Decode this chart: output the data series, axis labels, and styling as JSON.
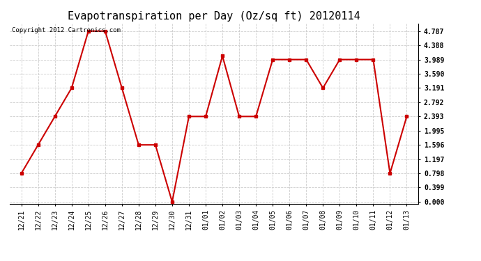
{
  "title": "Evapotranspiration per Day (Oz/sq ft) 20120114",
  "copyright": "Copyright 2012 Cartronics.com",
  "x_labels": [
    "12/21",
    "12/22",
    "12/23",
    "12/24",
    "12/25",
    "12/26",
    "12/27",
    "12/28",
    "12/29",
    "12/30",
    "12/31",
    "01/01",
    "01/02",
    "01/03",
    "01/04",
    "01/05",
    "01/06",
    "01/07",
    "01/08",
    "01/09",
    "01/10",
    "01/11",
    "01/12",
    "01/13"
  ],
  "y_values": [
    0.798,
    1.596,
    2.393,
    3.191,
    4.787,
    4.787,
    3.191,
    1.596,
    1.596,
    0.0,
    2.393,
    2.393,
    4.089,
    2.393,
    2.393,
    3.989,
    3.989,
    3.989,
    3.191,
    3.989,
    3.989,
    3.989,
    0.798,
    2.393
  ],
  "y_ticks": [
    0.0,
    0.399,
    0.798,
    1.197,
    1.596,
    1.995,
    2.393,
    2.792,
    3.191,
    3.59,
    3.989,
    4.388,
    4.787
  ],
  "line_color": "#cc0000",
  "marker": "s",
  "marker_size": 3,
  "background_color": "#ffffff",
  "grid_color": "#cccccc",
  "title_fontsize": 11,
  "tick_fontsize": 7,
  "copyright_fontsize": 6.5,
  "ylim_min": -0.05,
  "ylim_max": 5.0
}
